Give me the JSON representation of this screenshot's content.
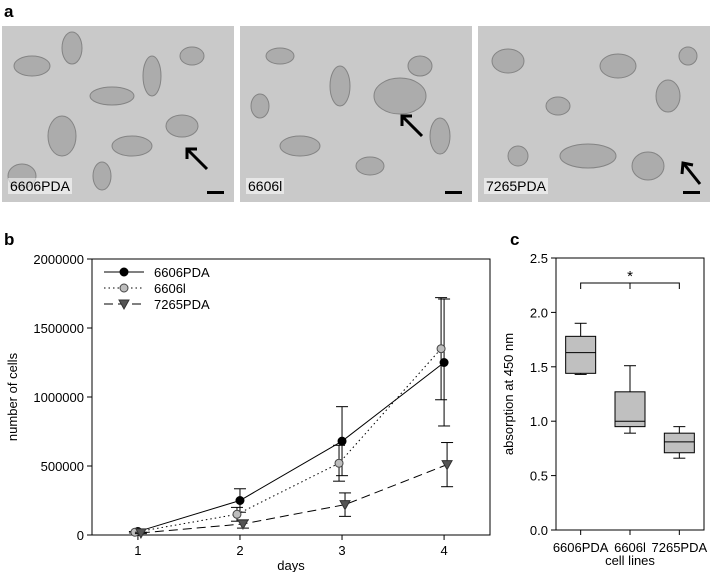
{
  "panel_labels": {
    "a": "a",
    "b": "b",
    "c": "c"
  },
  "micrographs": [
    {
      "label": "6606PDA"
    },
    {
      "label": "6606l"
    },
    {
      "label": "7265PDA"
    }
  ],
  "chart_data": [
    {
      "type": "line",
      "xlabel": "days",
      "ylabel": "number of cells",
      "xlim": [
        1,
        4
      ],
      "ylim": [
        0,
        2000000
      ],
      "x": [
        1,
        2,
        3,
        4
      ],
      "xticks": [
        "1",
        "2",
        "3",
        "4"
      ],
      "yticks": [
        "0",
        "500000",
        "1000000",
        "1500000",
        "2000000"
      ],
      "legend_position": "top-left",
      "series": [
        {
          "name": "6606PDA",
          "style": "solid",
          "marker": "circle-filled",
          "values": [
            25000,
            250000,
            680000,
            1250000
          ],
          "err": [
            5000,
            85000,
            250000,
            460000
          ]
        },
        {
          "name": "6606l",
          "style": "dotted",
          "marker": "circle-gray",
          "values": [
            20000,
            150000,
            520000,
            1350000
          ],
          "err": [
            5000,
            50000,
            130000,
            370000
          ]
        },
        {
          "name": "7265PDA",
          "style": "dashed",
          "marker": "triangle-down",
          "values": [
            15000,
            80000,
            220000,
            510000
          ],
          "err": [
            5000,
            30000,
            85000,
            160000
          ]
        }
      ]
    },
    {
      "type": "box",
      "xlabel": "cell lines",
      "ylabel": "absorption at 450 nm",
      "ylim": [
        0,
        2.5
      ],
      "yticks": [
        "0.0",
        "0.5",
        "1.0",
        "1.5",
        "2.0",
        "2.5"
      ],
      "categories": [
        "6606PDA",
        "6606l",
        "7265PDA"
      ],
      "boxes": [
        {
          "min": 1.43,
          "q1": 1.44,
          "median": 1.63,
          "q3": 1.78,
          "max": 1.9
        },
        {
          "min": 0.89,
          "q1": 0.95,
          "median": 1.0,
          "q3": 1.27,
          "max": 1.51
        },
        {
          "min": 0.66,
          "q1": 0.71,
          "median": 0.81,
          "q3": 0.89,
          "max": 0.95
        }
      ],
      "annotation": "*",
      "bracket_level": 2.27
    }
  ]
}
